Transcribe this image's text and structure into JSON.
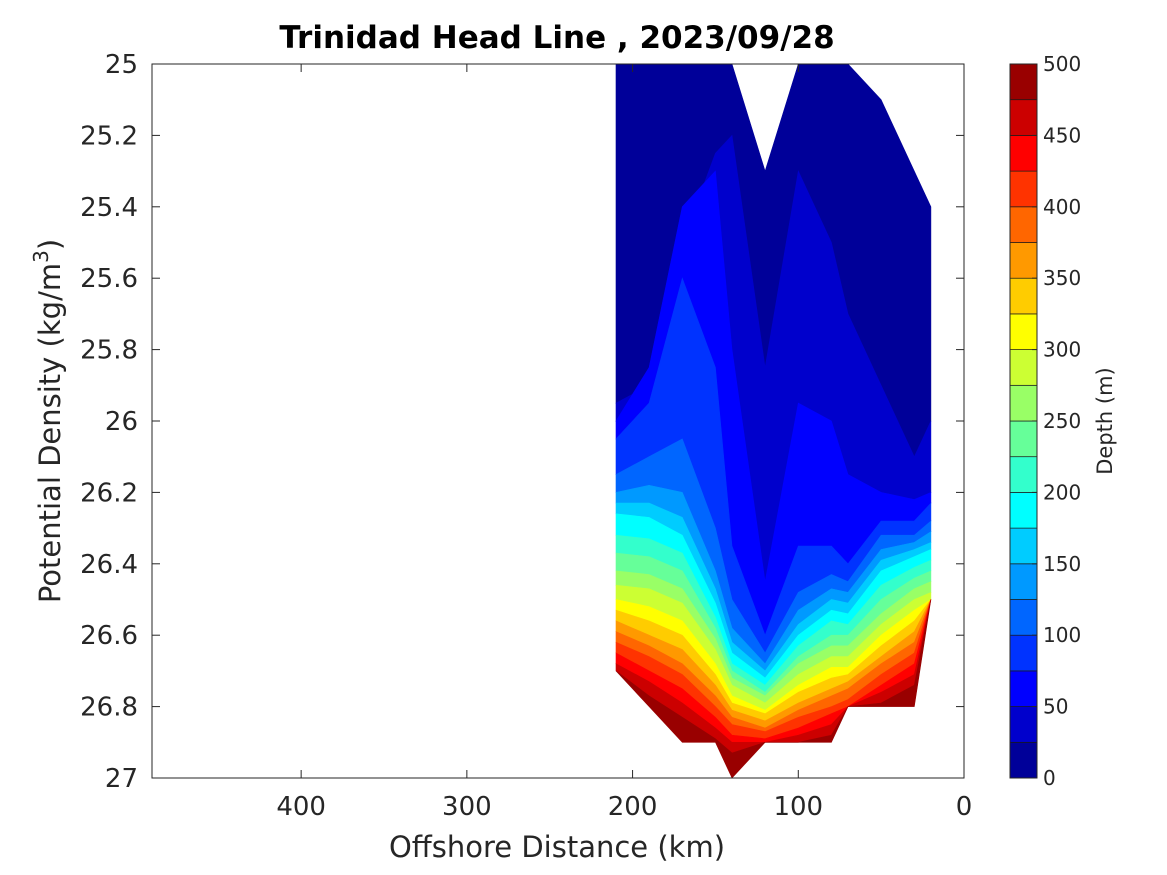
{
  "chart_data": {
    "type": "contour",
    "title": "Trinidad Head Line , 2023/09/28",
    "xlabel": "Offshore Distance (km)",
    "ylabel_prefix": "Potential Density (kg/m",
    "ylabel_sup": "3",
    "ylabel_suffix": ")",
    "colorbar_label": "Depth (m)",
    "x_reversed": true,
    "xlim": [
      0,
      490
    ],
    "ylim": [
      25,
      27
    ],
    "y_reversed": true,
    "xticks": [
      400,
      300,
      200,
      100,
      0
    ],
    "yticks": [
      "25",
      "25.2",
      "25.4",
      "25.6",
      "25.8",
      "26",
      "26.2",
      "26.4",
      "26.6",
      "26.8",
      "27"
    ],
    "colorbar_ticks": [
      0,
      50,
      100,
      150,
      200,
      250,
      300,
      350,
      400,
      450,
      500
    ],
    "colorbar_range": [
      0,
      500
    ],
    "contour_step": 25,
    "colormap": "jet",
    "stations_x": [
      210,
      190,
      170,
      150,
      140,
      120,
      100,
      80,
      70,
      50,
      30,
      20
    ],
    "density_top": [
      25,
      25,
      25,
      25,
      25,
      25.3,
      25,
      25,
      25,
      25.1,
      25.3,
      25.4
    ],
    "density_bottom": [
      26.7,
      26.8,
      26.9,
      26.9,
      27,
      26.9,
      26.9,
      26.9,
      26.8,
      26.8,
      26.8,
      26.5
    ],
    "isobaths": [
      {
        "depth": 25,
        "density": [
          25.95,
          25.9,
          25.5,
          25.25,
          25.2,
          25.85,
          25.3,
          25.5,
          25.7,
          25.9,
          26.1,
          26.0
        ]
      },
      {
        "depth": 50,
        "density": [
          26.0,
          25.85,
          25.4,
          25.3,
          25.8,
          26.45,
          25.95,
          26.0,
          26.15,
          26.2,
          26.22,
          26.2
        ]
      },
      {
        "depth": 75,
        "density": [
          26.05,
          25.95,
          25.6,
          25.85,
          26.35,
          26.6,
          26.35,
          26.35,
          26.4,
          26.28,
          26.28,
          26.23
        ]
      },
      {
        "depth": 100,
        "density": [
          26.15,
          26.1,
          26.05,
          26.3,
          26.5,
          26.65,
          26.48,
          26.43,
          26.45,
          26.32,
          26.32,
          26.28
        ]
      },
      {
        "depth": 125,
        "density": [
          26.2,
          26.18,
          26.2,
          26.42,
          26.58,
          26.68,
          26.53,
          26.47,
          26.48,
          26.36,
          26.34,
          26.31
        ]
      },
      {
        "depth": 150,
        "density": [
          26.23,
          26.23,
          26.27,
          26.47,
          26.62,
          26.7,
          26.57,
          26.5,
          26.51,
          26.39,
          26.36,
          26.34
        ]
      },
      {
        "depth": 175,
        "density": [
          26.26,
          26.27,
          26.32,
          26.51,
          26.65,
          26.72,
          26.6,
          26.53,
          26.54,
          26.42,
          26.38,
          26.36
        ]
      },
      {
        "depth": 200,
        "density": [
          26.32,
          26.33,
          26.37,
          26.55,
          26.68,
          26.74,
          26.63,
          26.56,
          26.57,
          26.46,
          26.41,
          26.39
        ]
      },
      {
        "depth": 225,
        "density": [
          26.37,
          26.38,
          26.42,
          26.58,
          26.7,
          26.76,
          26.66,
          26.6,
          26.6,
          26.5,
          26.44,
          26.42
        ]
      },
      {
        "depth": 250,
        "density": [
          26.42,
          26.43,
          26.47,
          26.61,
          26.72,
          26.77,
          26.68,
          26.63,
          26.63,
          26.54,
          26.47,
          26.45
        ]
      },
      {
        "depth": 275,
        "density": [
          26.46,
          26.47,
          26.51,
          26.64,
          26.74,
          26.79,
          26.71,
          26.66,
          26.66,
          26.57,
          26.5,
          26.48
        ]
      },
      {
        "depth": 300,
        "density": [
          26.5,
          26.52,
          26.56,
          26.68,
          26.77,
          26.81,
          26.74,
          26.69,
          26.69,
          26.6,
          26.53,
          26.5
        ]
      },
      {
        "depth": 325,
        "density": [
          26.53,
          26.56,
          26.6,
          26.71,
          26.79,
          26.82,
          26.76,
          26.72,
          26.71,
          26.63,
          26.56,
          26.53
        ]
      },
      {
        "depth": 350,
        "density": [
          26.56,
          26.6,
          26.64,
          26.74,
          26.81,
          26.84,
          26.79,
          26.75,
          26.73,
          26.66,
          26.59,
          26.56
        ]
      },
      {
        "depth": 375,
        "density": [
          26.59,
          26.63,
          26.68,
          26.77,
          26.83,
          26.86,
          26.81,
          26.77,
          26.75,
          26.68,
          26.62,
          26.58
        ]
      },
      {
        "depth": 400,
        "density": [
          26.62,
          26.66,
          26.71,
          26.8,
          26.85,
          26.87,
          26.83,
          26.8,
          26.78,
          26.71,
          26.65,
          26.61
        ]
      },
      {
        "depth": 425,
        "density": [
          26.65,
          26.7,
          26.75,
          26.83,
          26.88,
          26.89,
          26.86,
          26.82,
          26.8,
          26.74,
          26.68,
          26.64
        ]
      },
      {
        "depth": 450,
        "density": [
          26.68,
          26.73,
          26.79,
          26.86,
          26.9,
          26.91,
          26.88,
          26.85,
          26.83,
          26.76,
          26.71,
          26.66
        ]
      },
      {
        "depth": 475,
        "density": [
          26.71,
          26.77,
          26.83,
          26.89,
          26.93,
          26.93,
          26.9,
          26.88,
          26.86,
          26.79,
          26.74,
          26.69
        ]
      }
    ]
  }
}
